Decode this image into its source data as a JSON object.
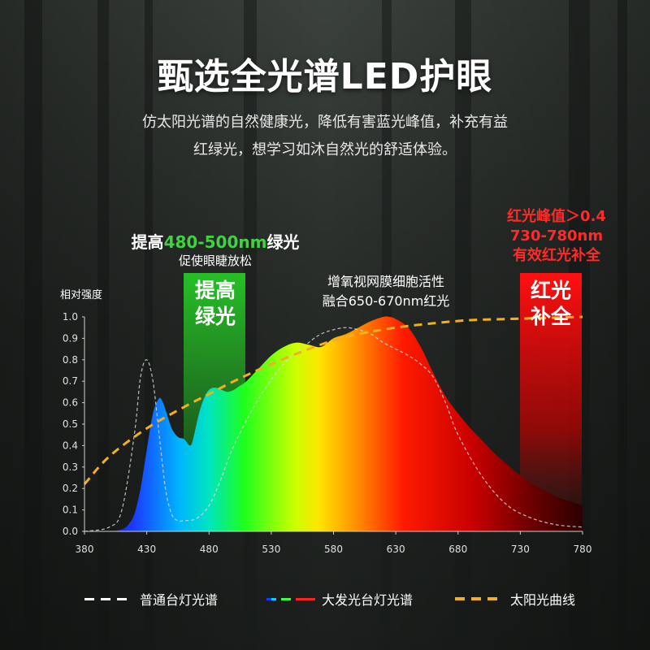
{
  "colors": {
    "accent_green": "#3fd43f",
    "accent_red": "#ff2a2a",
    "sun_curve": "#f2b01e",
    "lamp_curve": "#cfcfcf"
  },
  "header": {
    "title": "甄选全光谱LED护眼",
    "subtitle_line1": "仿太阳光谱的自然健康光，降低有害蓝光峰值，补充有益",
    "subtitle_line2": "红绿光，想学习如沐自然光的舒适体验。"
  },
  "annotations": {
    "green_head_prefix": "提高",
    "green_head_range": "480-500nm",
    "green_head_suffix": "绿光",
    "green_sub": "促使眼睫放松",
    "green_tag_line1": "提高",
    "green_tag_line2": "绿光",
    "mid_line1": "增氧视网膜细胞活性",
    "mid_line2": "融合650-670nm红光",
    "red_line1": "红光峰值＞0.4",
    "red_line2": "730-780nm",
    "red_line3": "有效红光补全",
    "red_tag_line1": "红光",
    "red_tag_line2": "补全"
  },
  "legend": {
    "item1": "普通台灯光谱",
    "item2": "大发光台灯光谱",
    "item3": "太阳光曲线"
  },
  "chart_data": {
    "type": "area",
    "title": "",
    "ylabel": "相对强度",
    "xlabel": "",
    "xlim": [
      380,
      780
    ],
    "ylim": [
      0,
      1.0
    ],
    "x_ticks": [
      "380",
      "430",
      "480",
      "530",
      "580",
      "630",
      "680",
      "730",
      "780"
    ],
    "y_ticks": [
      "0.0",
      "0.1",
      "0.2",
      "0.3",
      "0.4",
      "0.5",
      "0.6",
      "0.7",
      "0.8",
      "0.9",
      "1.0"
    ],
    "series": [
      {
        "name": "大发光台灯光谱",
        "style": "spectrum-fill",
        "x": [
          380,
          400,
          410,
          415,
          420,
          425,
          430,
          435,
          440,
          443,
          446,
          450,
          455,
          460,
          465,
          468,
          472,
          476,
          480,
          485,
          490,
          495,
          500,
          505,
          510,
          520,
          530,
          540,
          550,
          560,
          570,
          580,
          590,
          600,
          610,
          620,
          625,
          630,
          640,
          650,
          660,
          670,
          680,
          690,
          700,
          710,
          720,
          730,
          740,
          750,
          760,
          770,
          780
        ],
        "values": [
          0.0,
          0.0,
          0.01,
          0.03,
          0.08,
          0.2,
          0.38,
          0.55,
          0.62,
          0.6,
          0.55,
          0.48,
          0.44,
          0.43,
          0.4,
          0.45,
          0.55,
          0.62,
          0.66,
          0.67,
          0.66,
          0.65,
          0.66,
          0.68,
          0.7,
          0.76,
          0.82,
          0.86,
          0.88,
          0.87,
          0.86,
          0.9,
          0.92,
          0.95,
          0.98,
          1.0,
          1.0,
          0.99,
          0.95,
          0.86,
          0.74,
          0.63,
          0.55,
          0.48,
          0.42,
          0.36,
          0.31,
          0.26,
          0.22,
          0.19,
          0.16,
          0.14,
          0.12
        ]
      },
      {
        "name": "普通台灯光谱",
        "style": "white-dashed",
        "x": [
          380,
          400,
          410,
          420,
          425,
          430,
          435,
          440,
          445,
          450,
          455,
          460,
          470,
          480,
          490,
          500,
          520,
          540,
          560,
          570,
          580,
          590,
          600,
          610,
          620,
          630,
          640,
          650,
          660,
          670,
          680,
          700,
          720,
          740,
          760,
          780
        ],
        "values": [
          0.0,
          0.02,
          0.1,
          0.45,
          0.72,
          0.8,
          0.7,
          0.45,
          0.2,
          0.08,
          0.05,
          0.05,
          0.06,
          0.12,
          0.25,
          0.4,
          0.62,
          0.78,
          0.88,
          0.92,
          0.94,
          0.95,
          0.94,
          0.92,
          0.88,
          0.85,
          0.82,
          0.78,
          0.72,
          0.6,
          0.45,
          0.25,
          0.12,
          0.06,
          0.03,
          0.02
        ]
      },
      {
        "name": "太阳光曲线",
        "style": "yellow-dashed",
        "x": [
          380,
          400,
          430,
          460,
          480,
          500,
          530,
          560,
          580,
          600,
          630,
          660,
          690,
          720,
          750,
          780
        ],
        "values": [
          0.22,
          0.35,
          0.48,
          0.58,
          0.64,
          0.7,
          0.78,
          0.85,
          0.89,
          0.92,
          0.95,
          0.97,
          0.985,
          0.99,
          0.995,
          1.0
        ]
      }
    ]
  }
}
